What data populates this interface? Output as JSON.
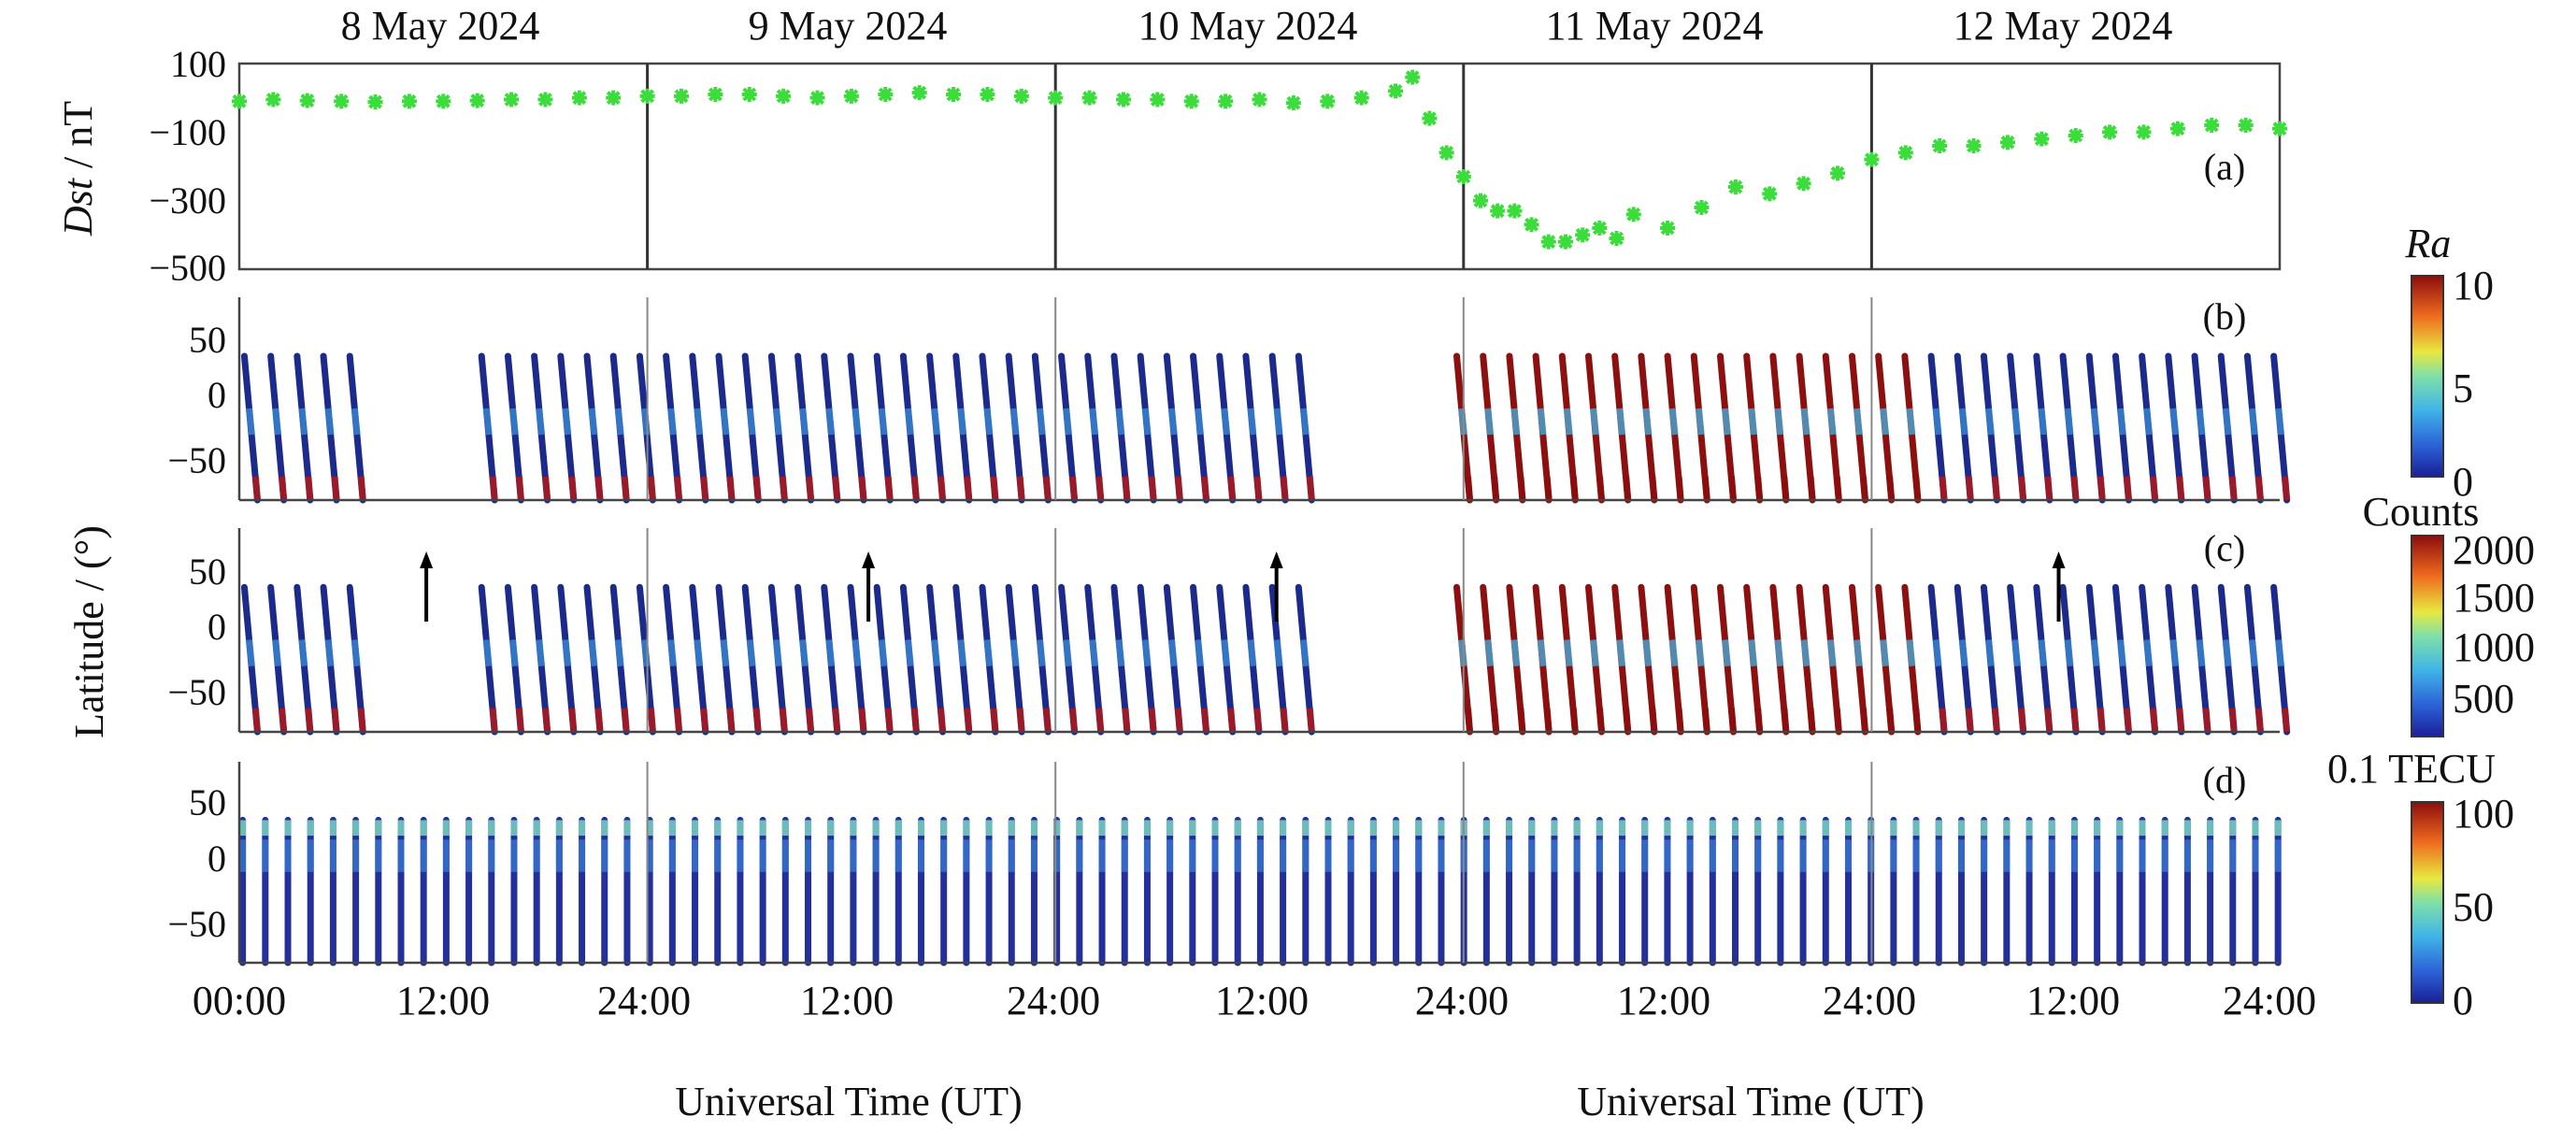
{
  "figure": {
    "day_labels": [
      "8 May 2024",
      "9 May 2024",
      "10 May 2024",
      "11 May 2024",
      "12 May 2024"
    ],
    "time_ticks": [
      "00:00",
      "12:00",
      "24:00",
      "12:00",
      "24:00",
      "12:00",
      "24:00",
      "12:00",
      "24:00",
      "12:00",
      "24:00"
    ],
    "xlabel_left": "Universal Time (UT)",
    "xlabel_right": "Universal Time (UT)",
    "latitude_label": "Latitude / (°)"
  },
  "chart_data": [
    {
      "type": "scatter",
      "panel": "(a)",
      "ylabel_italic": "Dst",
      "ylabel_unit": " / nT",
      "ylim": [
        -500,
        100
      ],
      "yticks": [
        "100",
        "−100",
        "−300",
        "−500"
      ],
      "ytick_values": [
        100,
        -100,
        -300,
        -500
      ],
      "xlim_hours": [
        0,
        120
      ],
      "marker_color": "#3ddc3d",
      "x_hours": [
        0,
        2,
        4,
        6,
        8,
        10,
        12,
        14,
        16,
        18,
        20,
        22,
        24,
        26,
        28,
        30,
        32,
        34,
        36,
        38,
        40,
        42,
        44,
        46,
        48,
        50,
        52,
        54,
        56,
        58,
        60,
        62,
        64,
        66,
        68,
        69,
        70,
        71,
        72,
        73,
        74,
        75,
        76,
        77,
        78,
        79,
        80,
        81,
        82,
        84,
        86,
        88,
        90,
        92,
        94,
        96,
        98,
        100,
        102,
        104,
        106,
        108,
        110,
        112,
        114,
        116,
        118,
        120
      ],
      "y_nT": [
        -10,
        -5,
        -8,
        -10,
        -12,
        -10,
        -10,
        -8,
        -5,
        -5,
        0,
        0,
        5,
        5,
        10,
        10,
        5,
        0,
        5,
        10,
        15,
        10,
        10,
        5,
        0,
        0,
        -5,
        -5,
        -10,
        -10,
        -5,
        -15,
        -10,
        0,
        20,
        60,
        -60,
        -160,
        -230,
        -300,
        -330,
        -330,
        -370,
        -420,
        -420,
        -400,
        -380,
        -410,
        -340,
        -380,
        -320,
        -260,
        -280,
        -250,
        -220,
        -180,
        -160,
        -140,
        -140,
        -130,
        -120,
        -110,
        -100,
        -100,
        -90,
        -80,
        -80,
        -90
      ]
    },
    {
      "type": "heatmap",
      "panel": "(b)",
      "ylim": [
        -80,
        75
      ],
      "yticks": [
        "50",
        "0",
        "−50"
      ],
      "ytick_values": [
        50,
        0,
        -50
      ],
      "colorbar_title": "Ra",
      "colorbar_ticks": [
        "10",
        "5",
        "0"
      ],
      "colorbar_range": [
        0,
        10
      ]
    },
    {
      "type": "heatmap",
      "panel": "(c)",
      "ylim": [
        -80,
        75
      ],
      "yticks": [
        "50",
        "0",
        "−50"
      ],
      "ytick_values": [
        50,
        0,
        -50
      ],
      "colorbar_title": "Counts",
      "colorbar_ticks": [
        "2000",
        "1500",
        "1000",
        "500"
      ],
      "colorbar_range": [
        0,
        2100
      ],
      "arrow_hours": [
        11,
        37,
        61,
        107
      ]
    },
    {
      "type": "heatmap",
      "panel": "(d)",
      "ylim": [
        -80,
        75
      ],
      "yticks": [
        "50",
        "0",
        "−50"
      ],
      "ytick_values": [
        50,
        0,
        -50
      ],
      "colorbar_title": "0.1 TECU",
      "colorbar_ticks": [
        "100",
        "50",
        "0"
      ],
      "colorbar_range": [
        0,
        105
      ]
    }
  ]
}
